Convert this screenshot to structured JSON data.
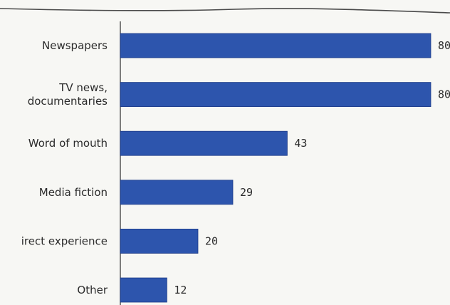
{
  "chart_data": {
    "type": "bar",
    "orientation": "horizontal",
    "categories": [
      [
        "Newspapers"
      ],
      [
        "TV news,",
        "documentaries"
      ],
      [
        "Word of mouth"
      ],
      [
        "Media fiction"
      ],
      [
        "irect experience"
      ],
      [
        "Other"
      ]
    ],
    "values": [
      80,
      80,
      43,
      29,
      20,
      12
    ],
    "value_labels": [
      "80",
      "80",
      "43",
      "29",
      "20",
      "12"
    ],
    "xlim": [
      0,
      80
    ],
    "grid": false,
    "colors": {
      "bar": "#2d55ad",
      "bar_edge": "#1c3a86",
      "axis": "#555555",
      "top_rule": "#4a4a4a"
    }
  }
}
